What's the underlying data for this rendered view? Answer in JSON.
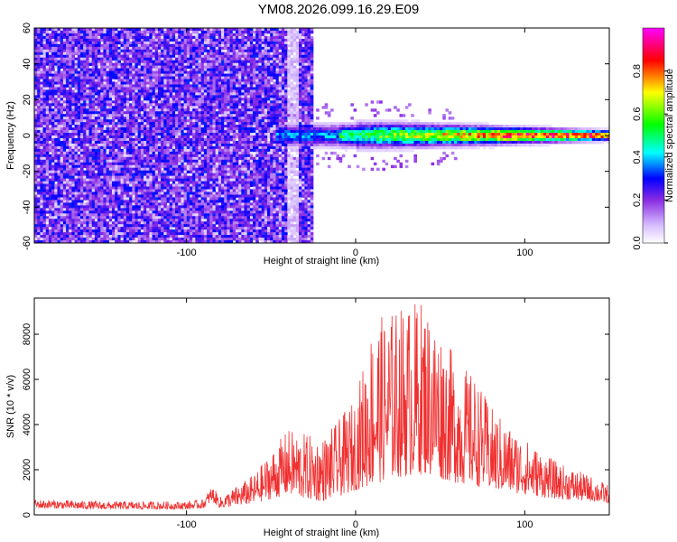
{
  "title": "YM08.2026.099.16.29.E09",
  "chart_data": [
    {
      "type": "heatmap",
      "xlabel": "Height of straight line (km)",
      "ylabel": "Frequency (Hz)",
      "xlim": [
        -190,
        150
      ],
      "ylim": [
        -60,
        60
      ],
      "x_ticks": [
        -100,
        0,
        100
      ],
      "y_ticks": [
        -60,
        -40,
        -20,
        0,
        20,
        40,
        60
      ],
      "colorbar": {
        "label": "Normalized spectral amplitude",
        "range": [
          0.0,
          1.0
        ],
        "ticks": [
          0.0,
          0.2,
          0.4,
          0.6,
          0.8
        ],
        "colors": [
          "#ffffff",
          "#d8c0ff",
          "#8a2be2",
          "#0000ff",
          "#00ffff",
          "#00ff00",
          "#ffff00",
          "#ff0000",
          "#ff00ff"
        ]
      },
      "description_regions": {
        "noise_band_x": [
          -190,
          -25
        ],
        "signal_band_x": [
          -48,
          150
        ],
        "signal_freq": 0,
        "signal_peak_x_range": [
          0,
          150
        ]
      }
    },
    {
      "type": "line",
      "xlabel": "Height of straight line (km)",
      "ylabel": "SNR (10 * v/v)",
      "xlim": [
        -190,
        150
      ],
      "ylim": [
        0,
        9600
      ],
      "x_ticks": [
        -100,
        0,
        100
      ],
      "y_ticks": [
        0,
        2000,
        4000,
        6000,
        8000
      ],
      "color": "#f03030",
      "envelope": {
        "x": [
          -190,
          -150,
          -100,
          -90,
          -85,
          -80,
          -60,
          -40,
          -30,
          -20,
          -10,
          0,
          10,
          20,
          30,
          40,
          50,
          60,
          70,
          80,
          90,
          100,
          110,
          120,
          130,
          140,
          150
        ],
        "max": [
          700,
          600,
          600,
          700,
          1300,
          800,
          1800,
          3800,
          3600,
          3400,
          4200,
          5200,
          8600,
          9000,
          9400,
          9600,
          8400,
          6800,
          6200,
          4800,
          4000,
          3400,
          2800,
          2300,
          2000,
          1700,
          1300
        ],
        "min": [
          300,
          250,
          250,
          300,
          600,
          300,
          500,
          900,
          700,
          600,
          800,
          1100,
          1300,
          1600,
          1700,
          1800,
          1600,
          1400,
          1300,
          1100,
          1000,
          900,
          800,
          700,
          650,
          600,
          500
        ]
      }
    }
  ]
}
